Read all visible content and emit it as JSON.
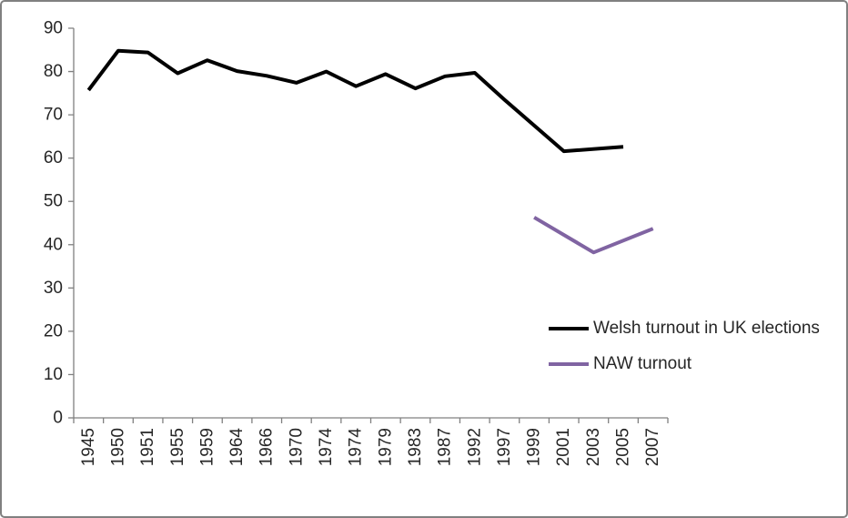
{
  "figure": {
    "background": "#FFFFFF",
    "border_color": "#808080",
    "axis_color": "#808080",
    "text_color": "#262626"
  },
  "chart_data": {
    "type": "line",
    "title": "",
    "xlabel": "",
    "ylabel": "",
    "grid": false,
    "legend_position": "middle-right",
    "categories": [
      "1945",
      "1950",
      "1951",
      "1955",
      "1959",
      "1964",
      "1966",
      "1970",
      "1974",
      "1974",
      "1979",
      "1983",
      "1987",
      "1992",
      "1997",
      "1999",
      "2001",
      "2003",
      "2005",
      "2007"
    ],
    "series": [
      {
        "name": "Welsh turnout in UK elections",
        "color": "#000000",
        "line_width": 4,
        "values": [
          75.7,
          84.8,
          84.4,
          79.6,
          82.6,
          80.1,
          79.0,
          77.4,
          80.0,
          76.6,
          79.4,
          76.1,
          78.9,
          79.7,
          73.5,
          null,
          61.6,
          null,
          62.6,
          null
        ]
      },
      {
        "name": "NAW turnout",
        "color": "#8064A2",
        "line_width": 4,
        "values": [
          null,
          null,
          null,
          null,
          null,
          null,
          null,
          null,
          null,
          null,
          null,
          null,
          null,
          null,
          null,
          46.3,
          null,
          38.2,
          null,
          43.7
        ]
      }
    ],
    "ylim": [
      0,
      90
    ],
    "yticks": [
      "0",
      "10",
      "20",
      "30",
      "40",
      "50",
      "60",
      "70",
      "80",
      "90"
    ]
  }
}
